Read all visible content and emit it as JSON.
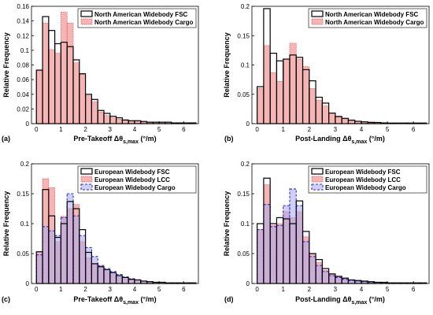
{
  "chart_data": [
    {
      "type": "bar",
      "panel_label": "(a)",
      "xlabel": "Pre-Takeoff Δθs,max (°/m)",
      "xlabel_main": "Pre-Takeoff Δθ",
      "xlabel_sub": "s,max",
      "xlabel_unit": " (°/m)",
      "ylabel": "Relative Frequency",
      "xlim": [
        -0.2,
        6.6
      ],
      "ylim": [
        0,
        0.16
      ],
      "yticks": [
        0,
        0.02,
        0.04,
        0.06,
        0.08,
        0.1,
        0.12,
        0.14,
        0.16
      ],
      "ytick_labels": [
        "0",
        "0.02",
        "0.04",
        "0.06",
        "0.08",
        "0.1",
        "0.12",
        "0.14",
        "0.16"
      ],
      "xticks": [
        0,
        1,
        2,
        3,
        4,
        5,
        6
      ],
      "xtick_labels": [
        "0",
        "1",
        "2",
        "3",
        "4",
        "5",
        "6"
      ],
      "bin_width": 0.25,
      "bin_start": 0,
      "legend_position": "top-right",
      "series": [
        {
          "name": "North American Widebody FSC",
          "style": "outline",
          "values": [
            0.073,
            0.146,
            0.127,
            0.109,
            0.111,
            0.105,
            0.087,
            0.068,
            0.04,
            0.033,
            0.018,
            0.014,
            0.01,
            0.008,
            0.005,
            0.004,
            0.004,
            0.003,
            0.002,
            0.002,
            0.002,
            0.002,
            0.001,
            0.001,
            0.001,
            0.001
          ]
        },
        {
          "name": "North American Widebody Cargo",
          "style": "fill",
          "values": [
            0.072,
            0.137,
            0.101,
            0.096,
            0.152,
            0.137,
            0.083,
            0.067,
            0.038,
            0.03,
            0.016,
            0.011,
            0.008,
            0.006,
            0.004,
            0.003,
            0.003,
            0.002,
            0.002,
            0.001,
            0.001,
            0.001,
            0.001,
            0.001,
            0.001,
            0.001
          ]
        }
      ]
    },
    {
      "type": "bar",
      "panel_label": "(b)",
      "xlabel": "Post-Landing Δθs,max (°/m)",
      "xlabel_main": "Post-Landing Δθ",
      "xlabel_sub": "s,max",
      "xlabel_unit": " (°/m)",
      "ylabel": "Relative Frequency",
      "xlim": [
        -0.2,
        6.6
      ],
      "ylim": [
        0,
        0.2
      ],
      "yticks": [
        0,
        0.05,
        0.1,
        0.15,
        0.2
      ],
      "ytick_labels": [
        "0",
        "0.05",
        "0.1",
        "0.15",
        "0.2"
      ],
      "xticks": [
        0,
        1,
        2,
        3,
        4,
        5,
        6
      ],
      "xtick_labels": [
        "0",
        "1",
        "2",
        "3",
        "4",
        "5",
        "6"
      ],
      "bin_width": 0.25,
      "bin_start": 0,
      "legend_position": "top-right",
      "series": [
        {
          "name": "North American Widebody FSC",
          "style": "outline",
          "values": [
            0.063,
            0.196,
            0.12,
            0.107,
            0.11,
            0.117,
            0.113,
            0.092,
            0.073,
            0.045,
            0.035,
            0.018,
            0.012,
            0.009,
            0.006,
            0.004,
            0.003,
            0.002,
            0.002,
            0.001,
            0.001,
            0.001,
            0.001,
            0.001,
            0.001,
            0.001
          ]
        },
        {
          "name": "North American Widebody Cargo",
          "style": "fill",
          "values": [
            0.06,
            0.133,
            0.087,
            0.072,
            0.11,
            0.137,
            0.11,
            0.097,
            0.06,
            0.04,
            0.03,
            0.018,
            0.013,
            0.008,
            0.005,
            0.004,
            0.003,
            0.003,
            0.002,
            0.002,
            0.001,
            0.001,
            0.001,
            0.001,
            0.001,
            0.001
          ]
        }
      ]
    },
    {
      "type": "bar",
      "panel_label": "(c)",
      "xlabel": "Pre-Takeoff Δθs,max (°/m)",
      "xlabel_main": "Pre-Takeoff Δθ",
      "xlabel_sub": "s,max",
      "xlabel_unit": " (°/m)",
      "ylabel": "Relative Frequency",
      "xlim": [
        -0.2,
        6.6
      ],
      "ylim": [
        0,
        0.2
      ],
      "yticks": [
        0,
        0.05,
        0.1,
        0.15,
        0.2
      ],
      "ytick_labels": [
        "0",
        "0.05",
        "0.1",
        "0.15",
        "0.2"
      ],
      "xticks": [
        0,
        1,
        2,
        3,
        4,
        5,
        6
      ],
      "xtick_labels": [
        "0",
        "1",
        "2",
        "3",
        "4",
        "5",
        "6"
      ],
      "bin_width": 0.25,
      "bin_start": 0,
      "legend_position": "top-right",
      "series": [
        {
          "name": "European Widebody FSC",
          "style": "outline",
          "values": [
            0.053,
            0.157,
            0.113,
            0.077,
            0.1,
            0.137,
            0.125,
            0.09,
            0.052,
            0.033,
            0.028,
            0.023,
            0.018,
            0.013,
            0.01,
            0.007,
            0.006,
            0.004,
            0.003,
            0.002,
            0.002,
            0.001,
            0.001,
            0.001,
            0.001,
            0.001
          ]
        },
        {
          "name": "European Widebody LCC",
          "style": "fill",
          "values": [
            0.053,
            0.175,
            0.16,
            0.07,
            0.112,
            0.125,
            0.132,
            0.07,
            0.043,
            0.033,
            0.03,
            0.02,
            0.015,
            0.01,
            0.008,
            0.006,
            0.005,
            0.004,
            0.003,
            0.002,
            0.002,
            0.001,
            0.001,
            0.001,
            0.001,
            0.001
          ]
        },
        {
          "name": "European Widebody Cargo",
          "style": "dashed-fill",
          "values": [
            0.048,
            0.095,
            0.088,
            0.08,
            0.11,
            0.15,
            0.113,
            0.08,
            0.06,
            0.045,
            0.03,
            0.025,
            0.02,
            0.015,
            0.011,
            0.008,
            0.006,
            0.004,
            0.003,
            0.002,
            0.002,
            0.001,
            0.001,
            0.001,
            0.001,
            0.001
          ]
        }
      ]
    },
    {
      "type": "bar",
      "panel_label": "(d)",
      "xlabel": "Post-Landing Δθs,max (°/m)",
      "xlabel_main": "Post-Landing Δθ",
      "xlabel_sub": "s,max",
      "xlabel_unit": " (°/m)",
      "ylabel": "Relative Frequency",
      "xlim": [
        -0.2,
        6.6
      ],
      "ylim": [
        0,
        0.2
      ],
      "yticks": [
        0,
        0.05,
        0.1,
        0.15,
        0.2
      ],
      "ytick_labels": [
        "0",
        "0.05",
        "0.1",
        "0.15",
        "0.2"
      ],
      "xticks": [
        0,
        1,
        2,
        3,
        4,
        5,
        6
      ],
      "xtick_labels": [
        "0",
        "1",
        "2",
        "3",
        "4",
        "5",
        "6"
      ],
      "bin_width": 0.25,
      "bin_start": 0,
      "legend_position": "top-right",
      "series": [
        {
          "name": "European Widebody FSC",
          "style": "outline",
          "values": [
            0.1,
            0.176,
            0.1,
            0.11,
            0.108,
            0.1,
            0.138,
            0.087,
            0.05,
            0.04,
            0.025,
            0.016,
            0.012,
            0.009,
            0.006,
            0.005,
            0.004,
            0.003,
            0.002,
            0.002,
            0.001,
            0.001,
            0.001,
            0.001,
            0.001,
            0.001
          ]
        },
        {
          "name": "European Widebody LCC",
          "style": "fill",
          "values": [
            0.09,
            0.165,
            0.097,
            0.1,
            0.12,
            0.11,
            0.12,
            0.078,
            0.05,
            0.035,
            0.022,
            0.015,
            0.011,
            0.008,
            0.006,
            0.004,
            0.003,
            0.003,
            0.002,
            0.002,
            0.001,
            0.001,
            0.001,
            0.001,
            0.001,
            0.001
          ]
        },
        {
          "name": "European Widebody Cargo",
          "style": "dashed-fill",
          "values": [
            0.09,
            0.132,
            0.095,
            0.097,
            0.13,
            0.158,
            0.13,
            0.07,
            0.045,
            0.03,
            0.02,
            0.013,
            0.01,
            0.007,
            0.005,
            0.004,
            0.003,
            0.002,
            0.002,
            0.001,
            0.001,
            0.001,
            0.001,
            0.001,
            0.001,
            0.001
          ]
        }
      ]
    }
  ],
  "colors": {
    "outline": "#000000",
    "fill": "#f4a8a8",
    "fill_edge": "#e05050",
    "dashed_fill": "#a8a8f0",
    "dashed_edge": "#3030d0",
    "overlap": "#a77fc0",
    "axis": "#000000"
  }
}
